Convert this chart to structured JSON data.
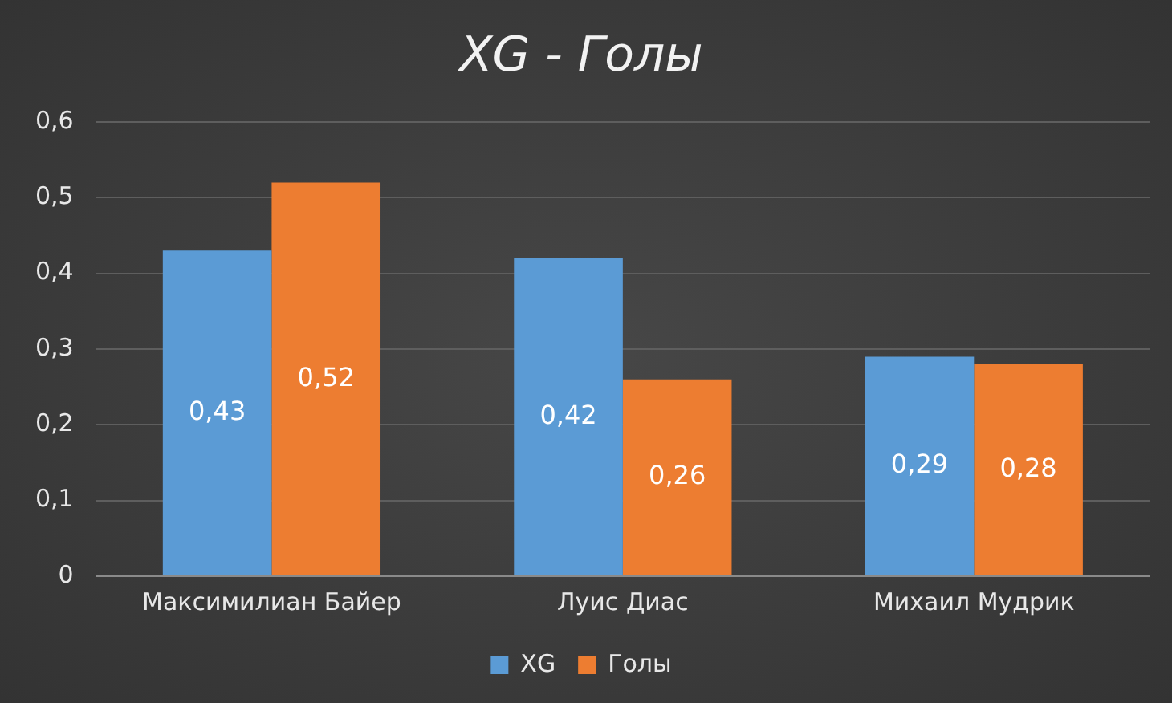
{
  "chart_data": {
    "type": "bar",
    "title": "XG - Голы",
    "categories": [
      "Максимилиан Байер",
      "Луис Диас",
      "Михаил Мудрик"
    ],
    "series": [
      {
        "name": "XG",
        "color": "#5b9bd5",
        "values": [
          0.43,
          0.42,
          0.29
        ],
        "value_labels": [
          "0,43",
          "0,42",
          "0,29"
        ]
      },
      {
        "name": "Голы",
        "color": "#ed7d31",
        "values": [
          0.52,
          0.26,
          0.28
        ],
        "value_labels": [
          "0,52",
          "0,26",
          "0,28"
        ]
      }
    ],
    "ylim": [
      0,
      0.6
    ],
    "yticks": [
      {
        "value": 0,
        "label": "0"
      },
      {
        "value": 0.1,
        "label": "0,1"
      },
      {
        "value": 0.2,
        "label": "0,2"
      },
      {
        "value": 0.3,
        "label": "0,3"
      },
      {
        "value": 0.4,
        "label": "0,4"
      },
      {
        "value": 0.5,
        "label": "0,5"
      },
      {
        "value": 0.6,
        "label": "0,6"
      }
    ],
    "grid": "y",
    "legend": "bottom"
  }
}
